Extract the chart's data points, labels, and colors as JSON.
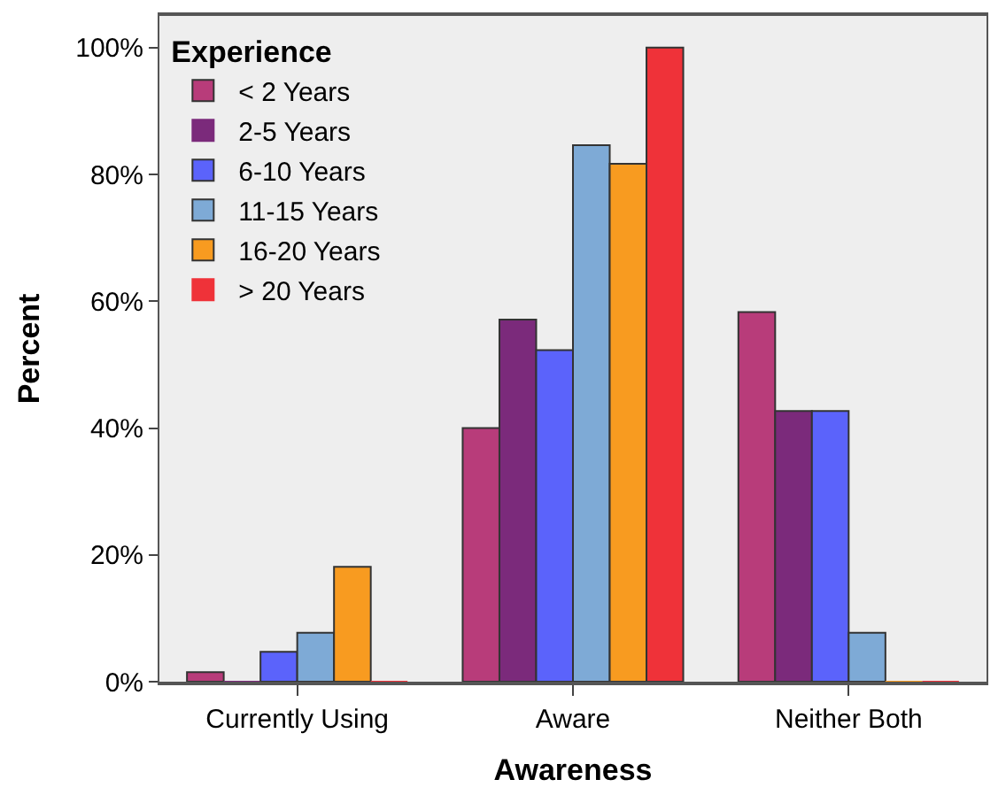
{
  "chart_data": {
    "type": "bar",
    "xlabel": "Awareness",
    "ylabel": "Percent",
    "legend_title": "Experience",
    "categories": [
      "Currently Using",
      "Aware",
      "Neither Both"
    ],
    "series": [
      {
        "name": "< 2 Years",
        "color": "#b83c7a",
        "values": [
          1.5,
          40,
          58.3
        ]
      },
      {
        "name": "2-5 Years",
        "color": "#7b2a7b",
        "values": [
          0,
          57.1,
          42.7
        ]
      },
      {
        "name": "6-10 Years",
        "color": "#5b63fb",
        "values": [
          4.7,
          52.3,
          42.7
        ]
      },
      {
        "name": "11-15 Years",
        "color": "#7eaad6",
        "values": [
          7.7,
          84.6,
          7.7
        ]
      },
      {
        "name": "16-20 Years",
        "color": "#f89b20",
        "values": [
          18.1,
          81.7,
          0
        ]
      },
      {
        "name": "> 20 Years",
        "color": "#ef3239",
        "values": [
          0,
          100,
          0
        ]
      }
    ],
    "ylim": [
      0,
      105
    ],
    "yticks": [
      {
        "value": 0,
        "label": "0%"
      },
      {
        "value": 20,
        "label": "20%"
      },
      {
        "value": 40,
        "label": "40%"
      },
      {
        "value": 60,
        "label": "60%"
      },
      {
        "value": 80,
        "label": "80%"
      },
      {
        "value": 100,
        "label": "100%"
      }
    ],
    "grid": false,
    "legend": "top left"
  }
}
